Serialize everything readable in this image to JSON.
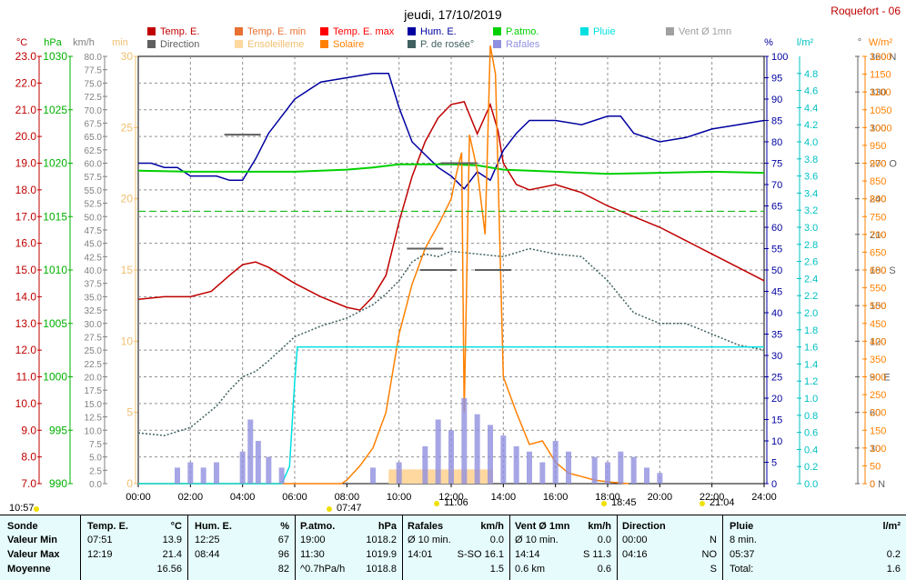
{
  "title": "jeudi, 17/10/2019",
  "station": "Roquefort - 06",
  "legend": [
    {
      "label": "Temp. E.",
      "color": "#c00000"
    },
    {
      "label": "Temp. E. min",
      "color": "#e87030"
    },
    {
      "label": "Temp. E. max",
      "color": "#ff0000"
    },
    {
      "label": "Hum. E.",
      "color": "#0000a0"
    },
    {
      "label": "P.atmo.",
      "color": "#00d000"
    },
    {
      "label": "Pluie",
      "color": "#00e0e0"
    },
    {
      "label": "Vent Ø 1mn",
      "color": "#a0a0a0"
    },
    {
      "label": "Direction",
      "color": "#606060"
    },
    {
      "label": "Ensoleilleme",
      "color": "#ffd8a0"
    },
    {
      "label": "Solaire",
      "color": "#ff8000"
    },
    {
      "label": "P. de rosée°",
      "color": "#406060"
    },
    {
      "label": "Rafales",
      "color": "#9090e0"
    }
  ],
  "axes": {
    "temp": {
      "unit": "°C",
      "ticks": [
        "23.0",
        "22.0",
        "21.0",
        "20.0",
        "19.0",
        "18.0",
        "17.0",
        "16.0",
        "15.0",
        "14.0",
        "13.0",
        "12.0",
        "11.0",
        "10.0",
        "9.0",
        "8.0",
        "7.0"
      ]
    },
    "pressure": {
      "unit": "hPa",
      "ticks": [
        "1030",
        "1025",
        "1020",
        "1015",
        "1010",
        "1005",
        "1000",
        "995",
        "990"
      ]
    },
    "wind": {
      "unit": "km/h",
      "ticks": [
        "80.0",
        "77.5",
        "75.0",
        "72.5",
        "70.0",
        "67.5",
        "65.0",
        "62.5",
        "60.0",
        "57.5",
        "55.0",
        "52.5",
        "50.0",
        "47.5",
        "45.0",
        "42.5",
        "40.0",
        "37.5",
        "35.0",
        "32.5",
        "30.0",
        "27.5",
        "25.0",
        "22.5",
        "20.0",
        "17.5",
        "15.0",
        "12.5",
        "10.0",
        "7.5",
        "5.0",
        "2.5",
        "0.0"
      ]
    },
    "sunshine": {
      "unit": "min",
      "ticks": [
        "30",
        "25",
        "20",
        "15",
        "10",
        "5",
        "0"
      ]
    },
    "humidity": {
      "unit": "%",
      "ticks": [
        "100",
        "95",
        "90",
        "85",
        "80",
        "75",
        "70",
        "65",
        "60",
        "55",
        "50",
        "45",
        "40",
        "35",
        "30",
        "25",
        "20",
        "15",
        "10",
        "5",
        "0"
      ]
    },
    "rain": {
      "unit": "l/m²",
      "ticks": [
        "4.8",
        "4.6",
        "4.4",
        "4.2",
        "4.0",
        "3.8",
        "3.6",
        "3.4",
        "3.2",
        "3.0",
        "2.8",
        "2.6",
        "2.4",
        "2.2",
        "2.0",
        "1.8",
        "1.6",
        "1.4",
        "1.2",
        "1.0",
        "0.8",
        "0.6",
        "0.4",
        "0.2",
        "0.0"
      ]
    },
    "direction": {
      "unit": "°",
      "ticks": [
        "360 N",
        "330",
        "300",
        "270 O",
        "240",
        "210",
        "180 S",
        "150",
        "120",
        "90  E",
        "60",
        "30",
        "0   N"
      ]
    },
    "solar": {
      "unit": "W/m²",
      "ticks": [
        "1200",
        "1150",
        "1100",
        "1050",
        "1000",
        "950",
        "900",
        "850",
        "800",
        "750",
        "700",
        "650",
        "600",
        "550",
        "500",
        "450",
        "400",
        "350",
        "300",
        "250",
        "200",
        "150",
        "100",
        "50",
        "0"
      ]
    },
    "time": [
      "00:00",
      "02:00",
      "04:00",
      "06:00",
      "08:00",
      "10:00",
      "12:00",
      "14:00",
      "16:00",
      "18:00",
      "20:00",
      "22:00",
      "24:00"
    ]
  },
  "markers": [
    "10:57",
    "07:47",
    "11:06",
    "18:45",
    "21:04"
  ],
  "chart_data": {
    "type": "line",
    "x_label": "",
    "x_range_hours": [
      0,
      24
    ],
    "series": [
      {
        "name": "Temp. E.",
        "axis": "°C",
        "x": [
          0,
          1,
          2,
          2.8,
          3.5,
          4,
          4.5,
          5,
          6,
          7,
          8,
          8.5,
          9,
          9.5,
          10,
          10.5,
          11,
          11.5,
          12,
          12.5,
          13,
          13.5,
          13.8,
          14,
          14.5,
          15,
          16,
          17,
          18,
          19,
          20,
          21,
          22,
          23,
          24
        ],
        "y": [
          13.9,
          14.0,
          14.0,
          14.2,
          14.8,
          15.2,
          15.3,
          15.1,
          14.5,
          14.0,
          13.6,
          13.5,
          14.0,
          14.8,
          16.8,
          18.5,
          19.8,
          20.7,
          21.2,
          21.3,
          20.1,
          21.2,
          20.2,
          19.0,
          18.2,
          18.0,
          18.2,
          17.9,
          17.4,
          17.0,
          16.6,
          16.1,
          15.6,
          15.1,
          14.6
        ]
      },
      {
        "name": "Hum. E.",
        "axis": "%",
        "x": [
          0,
          0.5,
          1,
          1.5,
          2,
          3,
          3.5,
          4,
          4.5,
          5,
          5.5,
          6,
          6.5,
          7,
          8,
          9,
          9.6,
          10,
          10.5,
          11,
          11.5,
          12,
          12.5,
          13,
          13.5,
          14,
          14.5,
          15,
          16,
          17,
          18,
          18.5,
          19,
          19.5,
          20,
          21,
          22,
          23,
          24
        ],
        "y": [
          75,
          75,
          74,
          74,
          72,
          72,
          71,
          71,
          76,
          82,
          86,
          90,
          92,
          94,
          95,
          96,
          96,
          88,
          80,
          77,
          74,
          72,
          69,
          73,
          71,
          78,
          82,
          85,
          85,
          84,
          86,
          86,
          82,
          81,
          80,
          81,
          83,
          84,
          85
        ]
      },
      {
        "name": "P.atmo.",
        "axis": "hPa",
        "x": [
          0,
          2,
          4,
          6,
          8,
          9,
          10,
          11,
          12,
          13,
          14,
          15,
          16,
          18,
          20,
          22,
          24
        ],
        "y": [
          1019.3,
          1019.2,
          1019.2,
          1019.2,
          1019.4,
          1019.6,
          1019.9,
          1019.9,
          1019.9,
          1019.8,
          1019.4,
          1019.3,
          1019.2,
          1019.0,
          1019.1,
          1019.2,
          1019.1
        ]
      },
      {
        "name": "P. de rosée°",
        "axis": "°C",
        "x": [
          0,
          1,
          2,
          3,
          3.5,
          4,
          4.5,
          5,
          6,
          7,
          8,
          9,
          9.5,
          10,
          10.5,
          11,
          11.5,
          12,
          13,
          14,
          15,
          16,
          17,
          18,
          19,
          20,
          21,
          22,
          23,
          24
        ],
        "y": [
          8.9,
          8.8,
          9.1,
          9.9,
          10.5,
          11.0,
          11.2,
          11.6,
          12.5,
          12.9,
          13.2,
          13.7,
          14.1,
          14.6,
          15.3,
          15.6,
          15.5,
          15.7,
          15.6,
          15.5,
          15.8,
          15.6,
          15.5,
          14.6,
          13.4,
          13.0,
          13.0,
          12.6,
          12.2,
          12.0
        ]
      },
      {
        "name": "Solaire",
        "axis": "W/m²",
        "x": [
          0,
          7.8,
          8,
          8.5,
          9,
          9.5,
          10,
          10.5,
          11,
          11.3,
          11.6,
          12,
          12.2,
          12.4,
          12.5,
          12.7,
          13,
          13.3,
          13.5,
          13.7,
          14,
          14.5,
          15,
          15.5,
          16,
          16.5,
          17,
          17.5,
          18,
          18.5,
          18.8
        ],
        "y": [
          0,
          0,
          10,
          50,
          100,
          200,
          420,
          560,
          660,
          700,
          740,
          800,
          870,
          930,
          200,
          980,
          880,
          700,
          1230,
          1150,
          300,
          200,
          110,
          120,
          60,
          30,
          20,
          10,
          5,
          2,
          0
        ]
      },
      {
        "name": "Pluie",
        "axis": "l/m²",
        "x": [
          0,
          5.5,
          5.8,
          6.0,
          6.1,
          24
        ],
        "y": [
          0,
          0,
          0.2,
          1.2,
          1.6,
          1.6
        ]
      },
      {
        "name": "Ensoleilleme",
        "axis": "min",
        "x": [
          9.6,
          13.6
        ],
        "y": [
          1,
          1
        ]
      },
      {
        "name": "Direction",
        "axis": "°",
        "x": [
          4.0,
          11.0,
          11.5,
          12.3,
          13.6
        ],
        "y": [
          294,
          198,
          180,
          270,
          180
        ]
      },
      {
        "name": "Rafales",
        "axis": "km/h",
        "x": [
          1.5,
          2.0,
          2.5,
          3.0,
          4.0,
          4.3,
          4.6,
          5.0,
          5.5,
          9.0,
          10.0,
          11.0,
          11.5,
          12.0,
          12.5,
          13.0,
          13.5,
          14.0,
          14.5,
          15.0,
          15.5,
          16.0,
          16.5,
          17.5,
          18.0,
          18.5,
          19.0,
          19.5,
          20.0
        ],
        "y": [
          3,
          4,
          3,
          4,
          6,
          12,
          8,
          5,
          3,
          3,
          4,
          7,
          12,
          10,
          16,
          13,
          11,
          9,
          7,
          6,
          4,
          8,
          6,
          5,
          4,
          6,
          5,
          3,
          2
        ]
      }
    ],
    "dashed_line": {
      "name": "P. de rosée° max",
      "axis": "hPa",
      "value": 1015.5
    }
  },
  "summary": {
    "headers": {
      "sonde": "Sonde",
      "temp": "Temp. E.",
      "temp_u": "°C",
      "hum": "Hum. E.",
      "hum_u": "%",
      "patmo": "P.atmo.",
      "patmo_u": "hPa",
      "raf": "Rafales",
      "raf_u": "km/h",
      "vent": "Vent Ø 1mn",
      "vent_u": "km/h",
      "dir": "Direction",
      "pluie": "Pluie",
      "pluie_u": "l/m²"
    },
    "rows": [
      {
        "label": "Valeur Min",
        "temp_t": "07:51",
        "temp_v": "13.9",
        "hum_t": "12:25",
        "hum_v": "67",
        "p_t": "19:00",
        "p_v": "1018.2",
        "raf_t": "Ø 10 min.",
        "raf_v": "0.0",
        "vent_t": "Ø 10 min.",
        "vent_v": "0.0",
        "dir_t": "00:00",
        "dir_v": "N",
        "pl_t": "8 min.",
        "pl_v": ""
      },
      {
        "label": "Valeur Max",
        "temp_t": "12:19",
        "temp_v": "21.4",
        "hum_t": "08:44",
        "hum_v": "96",
        "p_t": "11:30",
        "p_v": "1019.9",
        "raf_t": "14:01",
        "raf_v": "S-SO 16.1",
        "vent_t": "14:14",
        "vent_v": "S 11.3",
        "dir_t": "04:16",
        "dir_v": "NO",
        "pl_t": "05:37",
        "pl_v": "0.2"
      },
      {
        "label": "Moyenne",
        "temp_t": "",
        "temp_v": "16.56",
        "hum_t": "",
        "hum_v": "82",
        "p_t": "^0.7hPa/h",
        "p_v": "1018.8",
        "raf_t": "",
        "raf_v": "1.5",
        "vent_t": "0.6 km",
        "vent_v": "0.6",
        "dir_t": "",
        "dir_v": "S",
        "pl_t": "Total:",
        "pl_v": "1.6"
      }
    ]
  }
}
